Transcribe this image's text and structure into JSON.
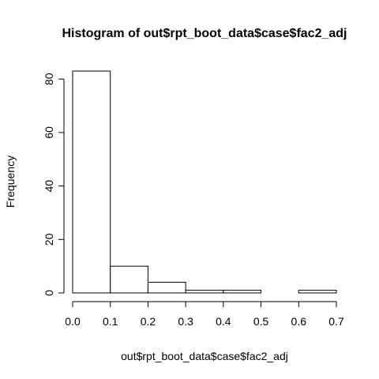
{
  "chart_data": {
    "type": "bar",
    "title": "Histogram of out$rpt_boot_data$case$fac2_adj",
    "xlabel": "out$rpt_boot_data$case$fac2_adj",
    "ylabel": "Frequency",
    "bins": [
      {
        "start": 0.0,
        "end": 0.1,
        "count": 83
      },
      {
        "start": 0.1,
        "end": 0.2,
        "count": 10
      },
      {
        "start": 0.2,
        "end": 0.3,
        "count": 4
      },
      {
        "start": 0.3,
        "end": 0.4,
        "count": 1
      },
      {
        "start": 0.4,
        "end": 0.5,
        "count": 1
      },
      {
        "start": 0.5,
        "end": 0.6,
        "count": 0
      },
      {
        "start": 0.6,
        "end": 0.7,
        "count": 1
      }
    ],
    "xlim": [
      0.0,
      0.7
    ],
    "ylim": [
      0,
      83
    ],
    "x_ticks": [
      "0.0",
      "0.1",
      "0.2",
      "0.3",
      "0.4",
      "0.5",
      "0.6",
      "0.7"
    ],
    "y_ticks": [
      "0",
      "20",
      "40",
      "60",
      "80"
    ],
    "grid": false,
    "legend": "none",
    "colors": {
      "bar_fill": "#ffffff",
      "bar_stroke": "#000000",
      "axis": "#000000"
    }
  }
}
